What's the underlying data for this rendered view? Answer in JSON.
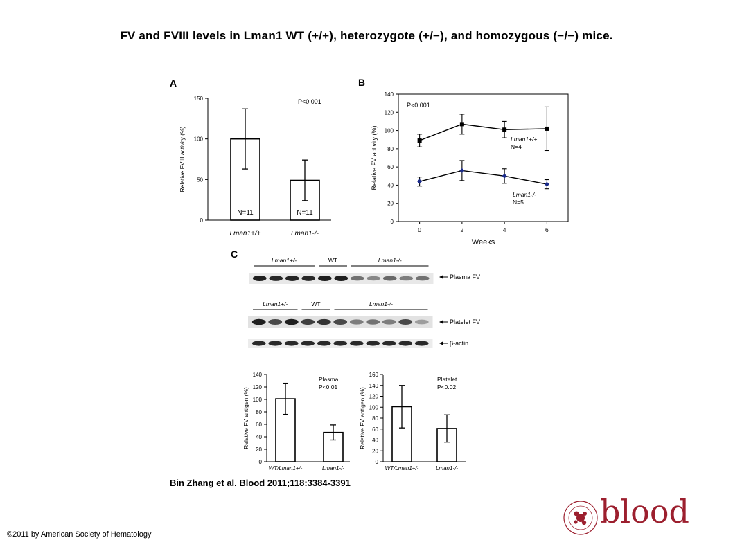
{
  "title": "FV and FVIII levels in Lman1 WT (+/+), heterozygote (+/−), and homozygous (−/−) mice.",
  "citation": "Bin Zhang et al. Blood 2011;118:3384-3391",
  "copyright": "©2011 by American Society of Hematology",
  "logo": {
    "text": "blood",
    "color": "#9c1f2e",
    "seal_text": "AMERICAN SOCIETY OF HEMATOLOGY"
  },
  "chart_data": [
    {
      "panel": "A",
      "type": "bar",
      "categories": [
        "Lman1+/+",
        "Lman1-/-"
      ],
      "values": [
        100,
        49
      ],
      "error": [
        37,
        25
      ],
      "bar_labels": [
        "N=11",
        "N=11"
      ],
      "annotation": "P<0.001",
      "ylabel": "Relative FVIII activity (%)",
      "ylim": [
        0,
        150
      ],
      "yticks": [
        0,
        50,
        100,
        150
      ]
    },
    {
      "panel": "B",
      "type": "line",
      "x": [
        0,
        2,
        4,
        6
      ],
      "series": [
        {
          "name": "Lman1+/+",
          "n_label": "N=4",
          "values": [
            89,
            107,
            101,
            102
          ],
          "error": [
            7,
            11,
            9,
            24
          ],
          "color": "#000000",
          "marker": "square"
        },
        {
          "name": "Lman1-/-",
          "n_label": "N=5",
          "values": [
            44,
            56,
            50,
            41
          ],
          "error": [
            5,
            11,
            8,
            5
          ],
          "color": "#1a2a8a",
          "marker": "diamond"
        }
      ],
      "annotation": "P<0.001",
      "xlabel": "Weeks",
      "ylabel": "Relative FV activity (%)",
      "xticks": [
        0,
        2,
        4,
        6
      ],
      "ylim": [
        0,
        140
      ],
      "yticks": [
        0,
        20,
        40,
        60,
        80,
        100,
        120,
        140
      ],
      "xlim": [
        -1,
        7
      ]
    },
    {
      "panel": "C",
      "type": "blot",
      "rows": [
        {
          "label": "Plasma FV",
          "groups": [
            {
              "name": "Lman1+/-",
              "lanes": 4
            },
            {
              "name": "WT",
              "lanes": 2
            },
            {
              "name": "Lman1-/-",
              "lanes": 5
            }
          ],
          "intensity": [
            0.95,
            0.9,
            0.92,
            0.9,
            0.95,
            0.95,
            0.55,
            0.45,
            0.6,
            0.5,
            0.55
          ]
        },
        {
          "label": "Platelet FV",
          "groups": [
            {
              "name": "Lman1+/-",
              "lanes": 3
            },
            {
              "name": "WT",
              "lanes": 2
            },
            {
              "name": "Lman1-/-",
              "lanes": 6
            }
          ],
          "intensity": [
            0.95,
            0.75,
            0.95,
            0.8,
            0.85,
            0.75,
            0.5,
            0.55,
            0.5,
            0.75,
            0.35
          ]
        },
        {
          "label": "β-actin",
          "intensity": [
            0.9,
            0.9,
            0.9,
            0.9,
            0.9,
            0.9,
            0.9,
            0.9,
            0.9,
            0.9,
            0.9
          ]
        }
      ]
    },
    {
      "panel": "C-plasma",
      "type": "bar",
      "categories": [
        "WT/Lman1+/-",
        "Lman1-/-"
      ],
      "values": [
        101,
        47
      ],
      "error": [
        25,
        12
      ],
      "annotation": "Plasma\nP<0.01",
      "ylabel": "Relative FV antigen (%)",
      "ylim": [
        0,
        140
      ],
      "yticks": [
        0,
        20,
        40,
        60,
        80,
        100,
        120,
        140
      ]
    },
    {
      "panel": "C-platelet",
      "type": "bar",
      "categories": [
        "WT/Lman1+/-",
        "Lman1-/-"
      ],
      "values": [
        101,
        61
      ],
      "error": [
        39,
        25
      ],
      "annotation": "Platelet\nP<0.02",
      "ylabel": "Relative FV antigen (%)",
      "ylim": [
        0,
        160
      ],
      "yticks": [
        0,
        20,
        40,
        60,
        80,
        100,
        120,
        140,
        160
      ]
    }
  ]
}
